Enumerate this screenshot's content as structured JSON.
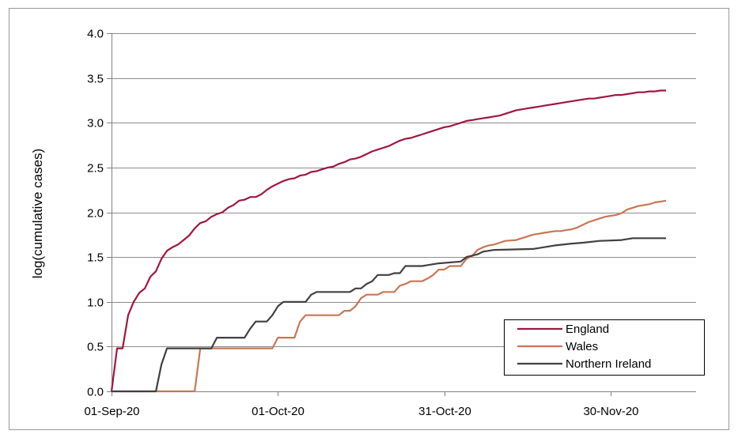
{
  "chart_data": {
    "type": "line",
    "title": "",
    "xlabel": "",
    "ylabel": "log(cumulative cases)",
    "x_start": "2020-09-01",
    "x_tick_labels": [
      "01-Sep-20",
      "01-Oct-20",
      "31-Oct-20",
      "30-Nov-20"
    ],
    "xlim": [
      "2020-09-01",
      "2020-12-10"
    ],
    "ylim": [
      0,
      4
    ],
    "y_ticks": [
      "0.0",
      "0.5",
      "1.0",
      "1.5",
      "2.0",
      "2.5",
      "3.0",
      "3.5",
      "4.0"
    ],
    "grid": true,
    "legend_position": "bottom-right",
    "series": [
      {
        "name": "England",
        "color": "#A0163E",
        "points": [
          [
            "2020-09-01",
            0
          ],
          [
            "2020-09-02",
            0.48
          ],
          [
            "2020-09-03",
            0.48
          ],
          [
            "2020-09-04",
            0.85
          ],
          [
            "2020-09-05",
            1.0
          ],
          [
            "2020-09-06",
            1.1
          ],
          [
            "2020-09-07",
            1.15
          ],
          [
            "2020-09-08",
            1.28
          ],
          [
            "2020-09-09",
            1.34
          ],
          [
            "2020-09-10",
            1.48
          ],
          [
            "2020-09-11",
            1.57
          ],
          [
            "2020-09-12",
            1.61
          ],
          [
            "2020-09-13",
            1.64
          ],
          [
            "2020-09-14",
            1.69
          ],
          [
            "2020-09-15",
            1.74
          ],
          [
            "2020-09-16",
            1.82
          ],
          [
            "2020-09-17",
            1.88
          ],
          [
            "2020-09-18",
            1.9
          ],
          [
            "2020-09-19",
            1.95
          ],
          [
            "2020-09-20",
            1.98
          ],
          [
            "2020-09-21",
            2.0
          ],
          [
            "2020-09-22",
            2.05
          ],
          [
            "2020-09-23",
            2.08
          ],
          [
            "2020-09-24",
            2.13
          ],
          [
            "2020-09-25",
            2.14
          ],
          [
            "2020-09-26",
            2.17
          ],
          [
            "2020-09-27",
            2.17
          ],
          [
            "2020-09-28",
            2.2
          ],
          [
            "2020-09-29",
            2.25
          ],
          [
            "2020-09-30",
            2.29
          ],
          [
            "2020-10-01",
            2.32
          ],
          [
            "2020-10-02",
            2.35
          ],
          [
            "2020-10-03",
            2.37
          ],
          [
            "2020-10-04",
            2.38
          ],
          [
            "2020-10-05",
            2.41
          ],
          [
            "2020-10-06",
            2.42
          ],
          [
            "2020-10-07",
            2.45
          ],
          [
            "2020-10-08",
            2.46
          ],
          [
            "2020-10-09",
            2.48
          ],
          [
            "2020-10-10",
            2.5
          ],
          [
            "2020-10-11",
            2.51
          ],
          [
            "2020-10-12",
            2.54
          ],
          [
            "2020-10-13",
            2.56
          ],
          [
            "2020-10-14",
            2.59
          ],
          [
            "2020-10-15",
            2.6
          ],
          [
            "2020-10-16",
            2.62
          ],
          [
            "2020-10-17",
            2.65
          ],
          [
            "2020-10-18",
            2.68
          ],
          [
            "2020-10-19",
            2.7
          ],
          [
            "2020-10-20",
            2.72
          ],
          [
            "2020-10-21",
            2.74
          ],
          [
            "2020-10-22",
            2.77
          ],
          [
            "2020-10-23",
            2.8
          ],
          [
            "2020-10-24",
            2.82
          ],
          [
            "2020-10-25",
            2.83
          ],
          [
            "2020-10-26",
            2.85
          ],
          [
            "2020-10-27",
            2.87
          ],
          [
            "2020-10-28",
            2.89
          ],
          [
            "2020-10-29",
            2.91
          ],
          [
            "2020-10-30",
            2.93
          ],
          [
            "2020-10-31",
            2.95
          ],
          [
            "2020-11-01",
            2.96
          ],
          [
            "2020-11-02",
            2.98
          ],
          [
            "2020-11-03",
            3.0
          ],
          [
            "2020-11-04",
            3.02
          ],
          [
            "2020-11-05",
            3.03
          ],
          [
            "2020-11-06",
            3.04
          ],
          [
            "2020-11-07",
            3.05
          ],
          [
            "2020-11-08",
            3.06
          ],
          [
            "2020-11-09",
            3.07
          ],
          [
            "2020-11-10",
            3.08
          ],
          [
            "2020-11-11",
            3.1
          ],
          [
            "2020-11-12",
            3.12
          ],
          [
            "2020-11-13",
            3.14
          ],
          [
            "2020-11-14",
            3.15
          ],
          [
            "2020-11-15",
            3.16
          ],
          [
            "2020-11-16",
            3.17
          ],
          [
            "2020-11-17",
            3.18
          ],
          [
            "2020-11-18",
            3.19
          ],
          [
            "2020-11-19",
            3.2
          ],
          [
            "2020-11-20",
            3.21
          ],
          [
            "2020-11-21",
            3.22
          ],
          [
            "2020-11-22",
            3.23
          ],
          [
            "2020-11-23",
            3.24
          ],
          [
            "2020-11-24",
            3.25
          ],
          [
            "2020-11-25",
            3.26
          ],
          [
            "2020-11-26",
            3.27
          ],
          [
            "2020-11-27",
            3.27
          ],
          [
            "2020-11-28",
            3.28
          ],
          [
            "2020-11-29",
            3.29
          ],
          [
            "2020-11-30",
            3.3
          ],
          [
            "2020-12-01",
            3.31
          ],
          [
            "2020-12-02",
            3.31
          ],
          [
            "2020-12-03",
            3.32
          ],
          [
            "2020-12-04",
            3.33
          ],
          [
            "2020-12-05",
            3.34
          ],
          [
            "2020-12-06",
            3.34
          ],
          [
            "2020-12-07",
            3.35
          ],
          [
            "2020-12-08",
            3.35
          ],
          [
            "2020-12-09",
            3.36
          ],
          [
            "2020-12-10",
            3.36
          ]
        ]
      },
      {
        "name": "Wales",
        "color": "#C87653",
        "points": [
          [
            "2020-09-01",
            0
          ],
          [
            "2020-09-09",
            0
          ],
          [
            "2020-09-16",
            0
          ],
          [
            "2020-09-17",
            0.48
          ],
          [
            "2020-09-30",
            0.48
          ],
          [
            "2020-10-01",
            0.6
          ],
          [
            "2020-10-04",
            0.6
          ],
          [
            "2020-10-05",
            0.78
          ],
          [
            "2020-10-06",
            0.85
          ],
          [
            "2020-10-12",
            0.85
          ],
          [
            "2020-10-13",
            0.9
          ],
          [
            "2020-10-14",
            0.9
          ],
          [
            "2020-10-15",
            0.95
          ],
          [
            "2020-10-16",
            1.04
          ],
          [
            "2020-10-17",
            1.08
          ],
          [
            "2020-10-19",
            1.08
          ],
          [
            "2020-10-20",
            1.11
          ],
          [
            "2020-10-22",
            1.11
          ],
          [
            "2020-10-23",
            1.18
          ],
          [
            "2020-10-24",
            1.2
          ],
          [
            "2020-10-25",
            1.23
          ],
          [
            "2020-10-27",
            1.23
          ],
          [
            "2020-10-28",
            1.26
          ],
          [
            "2020-10-29",
            1.3
          ],
          [
            "2020-10-30",
            1.36
          ],
          [
            "2020-10-31",
            1.36
          ],
          [
            "2020-11-01",
            1.4
          ],
          [
            "2020-11-03",
            1.4
          ],
          [
            "2020-11-04",
            1.48
          ],
          [
            "2020-11-05",
            1.51
          ],
          [
            "2020-11-06",
            1.58
          ],
          [
            "2020-11-07",
            1.61
          ],
          [
            "2020-11-08",
            1.63
          ],
          [
            "2020-11-09",
            1.64
          ],
          [
            "2020-11-10",
            1.66
          ],
          [
            "2020-11-11",
            1.68
          ],
          [
            "2020-11-13",
            1.69
          ],
          [
            "2020-11-14",
            1.71
          ],
          [
            "2020-11-15",
            1.73
          ],
          [
            "2020-11-16",
            1.75
          ],
          [
            "2020-11-17",
            1.76
          ],
          [
            "2020-11-18",
            1.77
          ],
          [
            "2020-11-20",
            1.79
          ],
          [
            "2020-11-21",
            1.79
          ],
          [
            "2020-11-22",
            1.8
          ],
          [
            "2020-11-23",
            1.81
          ],
          [
            "2020-11-24",
            1.83
          ],
          [
            "2020-11-25",
            1.86
          ],
          [
            "2020-11-26",
            1.89
          ],
          [
            "2020-11-27",
            1.91
          ],
          [
            "2020-11-28",
            1.93
          ],
          [
            "2020-11-29",
            1.95
          ],
          [
            "2020-11-30",
            1.96
          ],
          [
            "2020-12-01",
            1.97
          ],
          [
            "2020-12-02",
            1.99
          ],
          [
            "2020-12-03",
            2.03
          ],
          [
            "2020-12-04",
            2.05
          ],
          [
            "2020-12-05",
            2.07
          ],
          [
            "2020-12-06",
            2.08
          ],
          [
            "2020-12-07",
            2.09
          ],
          [
            "2020-12-08",
            2.11
          ],
          [
            "2020-12-09",
            2.12
          ],
          [
            "2020-12-10",
            2.13
          ]
        ]
      },
      {
        "name": "Northern Ireland",
        "color": "#404040",
        "points": [
          [
            "2020-09-01",
            0
          ],
          [
            "2020-09-09",
            0
          ],
          [
            "2020-09-10",
            0.3
          ],
          [
            "2020-09-11",
            0.48
          ],
          [
            "2020-09-19",
            0.48
          ],
          [
            "2020-09-20",
            0.6
          ],
          [
            "2020-09-25",
            0.6
          ],
          [
            "2020-09-26",
            0.7
          ],
          [
            "2020-09-27",
            0.78
          ],
          [
            "2020-09-29",
            0.78
          ],
          [
            "2020-09-30",
            0.85
          ],
          [
            "2020-10-01",
            0.95
          ],
          [
            "2020-10-02",
            1.0
          ],
          [
            "2020-10-06",
            1.0
          ],
          [
            "2020-10-07",
            1.08
          ],
          [
            "2020-10-08",
            1.11
          ],
          [
            "2020-10-14",
            1.11
          ],
          [
            "2020-10-15",
            1.15
          ],
          [
            "2020-10-16",
            1.15
          ],
          [
            "2020-10-17",
            1.2
          ],
          [
            "2020-10-18",
            1.23
          ],
          [
            "2020-10-19",
            1.3
          ],
          [
            "2020-10-21",
            1.3
          ],
          [
            "2020-10-22",
            1.32
          ],
          [
            "2020-10-23",
            1.32
          ],
          [
            "2020-10-24",
            1.4
          ],
          [
            "2020-10-27",
            1.4
          ],
          [
            "2020-10-28",
            1.41
          ],
          [
            "2020-10-30",
            1.43
          ],
          [
            "2020-11-03",
            1.45
          ],
          [
            "2020-11-04",
            1.5
          ],
          [
            "2020-11-06",
            1.53
          ],
          [
            "2020-11-07",
            1.56
          ],
          [
            "2020-11-09",
            1.58
          ],
          [
            "2020-11-16",
            1.59
          ],
          [
            "2020-11-18",
            1.61
          ],
          [
            "2020-11-20",
            1.63
          ],
          [
            "2020-11-23",
            1.65
          ],
          [
            "2020-11-25",
            1.66
          ],
          [
            "2020-11-28",
            1.68
          ],
          [
            "2020-12-02",
            1.69
          ],
          [
            "2020-12-04",
            1.71
          ],
          [
            "2020-12-10",
            1.71
          ]
        ]
      }
    ]
  }
}
